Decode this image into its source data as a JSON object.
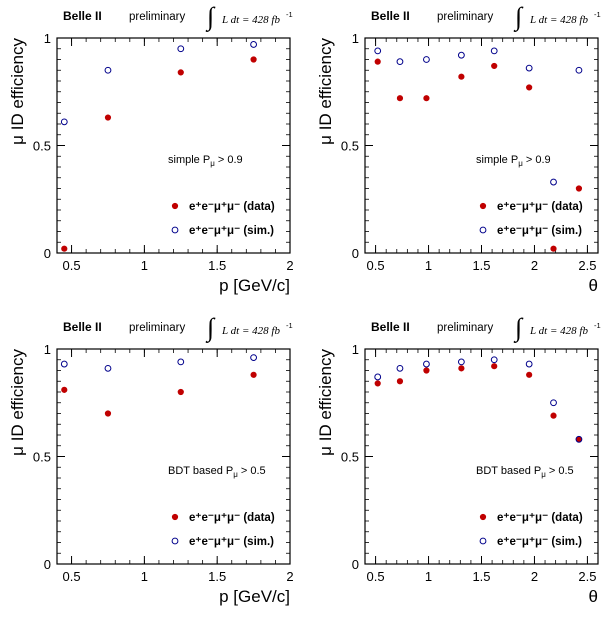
{
  "colors": {
    "data": "#c00000",
    "sim": "#00008b",
    "axis": "#000000"
  },
  "chart_data": [
    {
      "type": "scatter",
      "experiment": "Belle II",
      "status": "preliminary",
      "lumi": "L dt = 428 fb",
      "lumi_exp": "-1",
      "ylabel": "μ ID efficiency",
      "xlabel": "p [GeV/c]",
      "xlim": [
        0.4,
        2.0
      ],
      "ylim": [
        0,
        1
      ],
      "xticks": [
        "0.5",
        "1",
        "1.5",
        "2"
      ],
      "xtick_values": [
        0.5,
        1.0,
        1.5,
        2.0
      ],
      "yticks": [
        "0",
        "0.5",
        "1"
      ],
      "ytick_values": [
        0,
        0.5,
        1
      ],
      "selection_text": "simple P",
      "selection_sub": "μ",
      "selection_cut": " > 0.9",
      "series": [
        {
          "name": "e⁺e⁻μ⁺μ⁻ (data)",
          "marker": "filled",
          "color": "#c00000",
          "x": [
            0.45,
            0.75,
            1.25,
            1.75
          ],
          "y": [
            0.02,
            0.63,
            0.84,
            0.9
          ]
        },
        {
          "name": "e⁺e⁻μ⁺μ⁻ (sim.)",
          "marker": "open",
          "color": "#00008b",
          "x": [
            0.45,
            0.75,
            1.25,
            1.75
          ],
          "y": [
            0.61,
            0.85,
            0.95,
            0.97
          ]
        }
      ]
    },
    {
      "type": "scatter",
      "experiment": "Belle II",
      "status": "preliminary",
      "lumi": "L dt = 428 fb",
      "lumi_exp": "-1",
      "ylabel": "μ ID efficiency",
      "xlabel": "θ",
      "xlim": [
        0.4,
        2.6
      ],
      "ylim": [
        0,
        1
      ],
      "xticks": [
        "0.5",
        "1",
        "1.5",
        "2",
        "2.5"
      ],
      "xtick_values": [
        0.5,
        1.0,
        1.5,
        2.0,
        2.5
      ],
      "yticks": [
        "0",
        "0.5",
        "1"
      ],
      "ytick_values": [
        0,
        0.5,
        1
      ],
      "selection_text": "simple P",
      "selection_sub": "μ",
      "selection_cut": " > 0.9",
      "series": [
        {
          "name": "e⁺e⁻μ⁺μ⁻ (data)",
          "marker": "filled",
          "color": "#c00000",
          "x": [
            0.52,
            0.73,
            0.98,
            1.31,
            1.62,
            1.95,
            2.18,
            2.42
          ],
          "y": [
            0.89,
            0.72,
            0.72,
            0.82,
            0.87,
            0.77,
            0.02,
            0.3
          ]
        },
        {
          "name": "e⁺e⁻μ⁺μ⁻ (sim.)",
          "marker": "open",
          "color": "#00008b",
          "x": [
            0.52,
            0.73,
            0.98,
            1.31,
            1.62,
            1.95,
            2.18,
            2.42
          ],
          "y": [
            0.94,
            0.89,
            0.9,
            0.92,
            0.94,
            0.86,
            0.33,
            0.85
          ]
        }
      ]
    },
    {
      "type": "scatter",
      "experiment": "Belle II",
      "status": "preliminary",
      "lumi": "L dt = 428 fb",
      "lumi_exp": "-1",
      "ylabel": "μ ID efficiency",
      "xlabel": "p [GeV/c]",
      "xlim": [
        0.4,
        2.0
      ],
      "ylim": [
        0,
        1
      ],
      "xticks": [
        "0.5",
        "1",
        "1.5",
        "2"
      ],
      "xtick_values": [
        0.5,
        1.0,
        1.5,
        2.0
      ],
      "yticks": [
        "0",
        "0.5",
        "1"
      ],
      "ytick_values": [
        0,
        0.5,
        1
      ],
      "selection_text": "BDT based P",
      "selection_sub": "μ",
      "selection_cut": " > 0.5",
      "series": [
        {
          "name": "e⁺e⁻μ⁺μ⁻ (data)",
          "marker": "filled",
          "color": "#c00000",
          "x": [
            0.45,
            0.75,
            1.25,
            1.75
          ],
          "y": [
            0.81,
            0.7,
            0.8,
            0.88
          ]
        },
        {
          "name": "e⁺e⁻μ⁺μ⁻ (sim.)",
          "marker": "open",
          "color": "#00008b",
          "x": [
            0.45,
            0.75,
            1.25,
            1.75
          ],
          "y": [
            0.93,
            0.91,
            0.94,
            0.96
          ]
        }
      ]
    },
    {
      "type": "scatter",
      "experiment": "Belle II",
      "status": "preliminary",
      "lumi": "L dt = 428 fb",
      "lumi_exp": "-1",
      "ylabel": "μ ID efficiency",
      "xlabel": "θ",
      "xlim": [
        0.4,
        2.6
      ],
      "ylim": [
        0,
        1
      ],
      "xticks": [
        "0.5",
        "1",
        "1.5",
        "2",
        "2.5"
      ],
      "xtick_values": [
        0.5,
        1.0,
        1.5,
        2.0,
        2.5
      ],
      "yticks": [
        "0",
        "0.5",
        "1"
      ],
      "ytick_values": [
        0,
        0.5,
        1
      ],
      "selection_text": "BDT based P",
      "selection_sub": "μ",
      "selection_cut": " > 0.5",
      "series": [
        {
          "name": "e⁺e⁻μ⁺μ⁻ (data)",
          "marker": "filled",
          "color": "#c00000",
          "x": [
            0.52,
            0.73,
            0.98,
            1.31,
            1.62,
            1.95,
            2.18,
            2.42
          ],
          "y": [
            0.84,
            0.85,
            0.9,
            0.91,
            0.92,
            0.88,
            0.69,
            0.58
          ]
        },
        {
          "name": "e⁺e⁻μ⁺μ⁻ (sim.)",
          "marker": "open",
          "color": "#00008b",
          "x": [
            0.52,
            0.73,
            0.98,
            1.31,
            1.62,
            1.95,
            2.18,
            2.42
          ],
          "y": [
            0.87,
            0.91,
            0.93,
            0.94,
            0.95,
            0.93,
            0.75,
            0.58
          ]
        }
      ]
    }
  ]
}
